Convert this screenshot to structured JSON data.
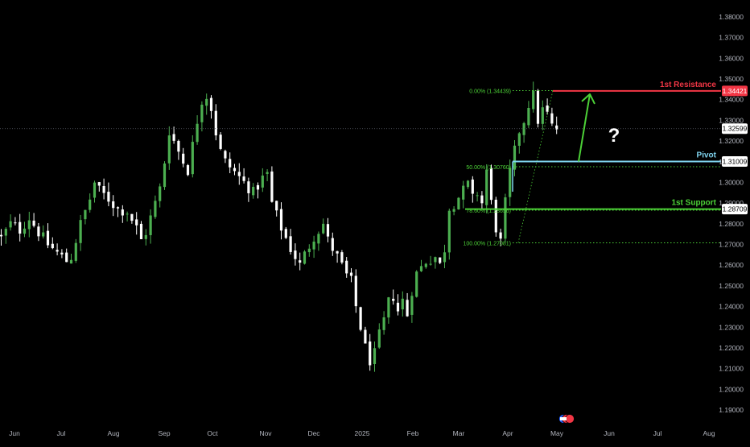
{
  "chart_data": {
    "type": "candlestick",
    "colors": {
      "background": "#000000",
      "candle_up": "#4caf50",
      "candle_down": "#ffffff",
      "resistance": "#f23645",
      "pivot": "#7fd4ef",
      "support": "#4cd137",
      "fib": "#4cd137",
      "arrow": "#4cd137",
      "question": "#ffffff",
      "current_price": "#ffffff"
    },
    "y_axis": {
      "range": [
        1.185,
        1.385
      ],
      "ticks": [
        "1.19000",
        "1.20000",
        "1.21000",
        "1.22000",
        "1.23000",
        "1.24000",
        "1.25000",
        "1.26000",
        "1.27000",
        "1.28000",
        "1.29000",
        "1.30000",
        "1.31000",
        "1.32000",
        "1.33000",
        "1.34000",
        "1.35000",
        "1.36000",
        "1.37000",
        "1.38000"
      ]
    },
    "x_axis": {
      "labels": [
        "Jun",
        "Jul",
        "Aug",
        "Sep",
        "Oct",
        "Nov",
        "Dec",
        "2025",
        "Feb",
        "Mar",
        "Apr",
        "May",
        "Jun",
        "Jul",
        "Aug"
      ]
    },
    "levels": [
      {
        "name": "1st Resistance",
        "value": 1.34421,
        "label": "1.34421"
      },
      {
        "name": "Pivot",
        "value": 1.31009,
        "label": "1.31009"
      },
      {
        "name": "1st Support",
        "value": 1.28709,
        "label": "1.28709"
      }
    ],
    "current_price": {
      "value": 1.32599,
      "label": "1.32599"
    },
    "fib_levels": [
      {
        "label": "0.00% (1.34439)",
        "value": 1.34439
      },
      {
        "label": "50.00% (1.30760)",
        "value": 1.3076
      },
      {
        "label": "78.60% (1.28656)",
        "value": 1.28656
      },
      {
        "label": "100.00% (1.27081)",
        "value": 1.27081
      }
    ],
    "annotation": "?",
    "price_path": [
      [
        0,
        1.273
      ],
      [
        2,
        1.28
      ],
      [
        4,
        1.277
      ],
      [
        6,
        1.283
      ],
      [
        8,
        1.276
      ],
      [
        10,
        1.27
      ],
      [
        12,
        1.266
      ],
      [
        14,
        1.262
      ],
      [
        15,
        1.264
      ],
      [
        17,
        1.28
      ],
      [
        19,
        1.292
      ],
      [
        20,
        1.3
      ],
      [
        21,
        1.296
      ],
      [
        23,
        1.292
      ],
      [
        25,
        1.287
      ],
      [
        27,
        1.286
      ],
      [
        29,
        1.278
      ],
      [
        30,
        1.272
      ],
      [
        31,
        1.276
      ],
      [
        33,
        1.29
      ],
      [
        34,
        1.297
      ],
      [
        35,
        1.31
      ],
      [
        36,
        1.325
      ],
      [
        37,
        1.32
      ],
      [
        38,
        1.315
      ],
      [
        39,
        1.31
      ],
      [
        40,
        1.306
      ],
      [
        41,
        1.318
      ],
      [
        42,
        1.33
      ],
      [
        43,
        1.34
      ],
      [
        44,
        1.342
      ],
      [
        45,
        1.336
      ],
      [
        46,
        1.324
      ],
      [
        47,
        1.315
      ],
      [
        48,
        1.31
      ],
      [
        50,
        1.305
      ],
      [
        52,
        1.3
      ],
      [
        54,
        1.295
      ],
      [
        56,
        1.302
      ],
      [
        57,
        1.304
      ],
      [
        58,
        1.29
      ],
      [
        60,
        1.278
      ],
      [
        62,
        1.268
      ],
      [
        64,
        1.26
      ],
      [
        65,
        1.265
      ],
      [
        67,
        1.274
      ],
      [
        69,
        1.28
      ],
      [
        70,
        1.272
      ],
      [
        72,
        1.264
      ],
      [
        74,
        1.255
      ],
      [
        75,
        1.252
      ],
      [
        76,
        1.24
      ],
      [
        77,
        1.23
      ],
      [
        78,
        1.22
      ],
      [
        79,
        1.214
      ],
      [
        80,
        1.217
      ],
      [
        81,
        1.226
      ],
      [
        82,
        1.233
      ],
      [
        83,
        1.242
      ],
      [
        84,
        1.245
      ],
      [
        85,
        1.238
      ],
      [
        86,
        1.243
      ],
      [
        87,
        1.236
      ],
      [
        88,
        1.248
      ],
      [
        89,
        1.256
      ],
      [
        91,
        1.262
      ],
      [
        93,
        1.264
      ],
      [
        94,
        1.26
      ],
      [
        95,
        1.268
      ],
      [
        96,
        1.288
      ],
      [
        97,
        1.29
      ],
      [
        99,
        1.296
      ],
      [
        100,
        1.299
      ],
      [
        101,
        1.292
      ],
      [
        102,
        1.295
      ],
      [
        103,
        1.29
      ],
      [
        104,
        1.306
      ],
      [
        105,
        1.29
      ],
      [
        106,
        1.278
      ],
      [
        107,
        1.271
      ],
      [
        108,
        1.29
      ],
      [
        109,
        1.305
      ],
      [
        110,
        1.315
      ],
      [
        111,
        1.325
      ],
      [
        112,
        1.33
      ],
      [
        113,
        1.338
      ],
      [
        114,
        1.342
      ],
      [
        115,
        1.33
      ],
      [
        116,
        1.335
      ],
      [
        117,
        1.333
      ],
      [
        118,
        1.327
      ],
      [
        119,
        1.326
      ]
    ]
  }
}
